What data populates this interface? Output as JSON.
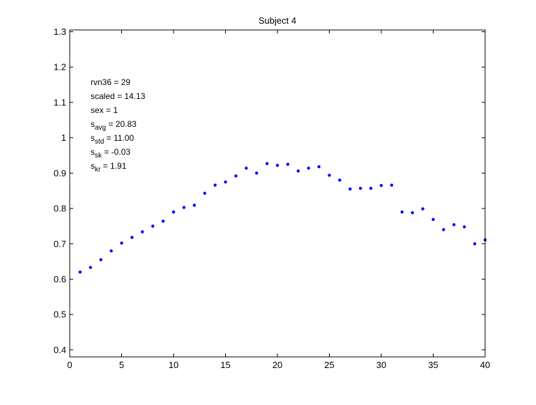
{
  "chart_data": {
    "type": "scatter",
    "title": "Subject 4",
    "xlabel": "",
    "ylabel": "",
    "xlim": [
      0,
      40
    ],
    "ylim": [
      0.38,
      1.305
    ],
    "x_ticks": [
      0,
      5,
      10,
      15,
      20,
      25,
      30,
      35,
      40
    ],
    "y_ticks": [
      0.4,
      0.5,
      0.6,
      0.7,
      0.8,
      0.9,
      1,
      1.1,
      1.2,
      1.3
    ],
    "x_tick_labels": [
      "0",
      "5",
      "10",
      "15",
      "20",
      "25",
      "30",
      "35",
      "40"
    ],
    "y_tick_labels": [
      "0.4",
      "0.5",
      "0.6",
      "0.7",
      "0.8",
      "0.9",
      "1",
      "1.1",
      "1.2",
      "1.3"
    ],
    "grid": false,
    "legend": null,
    "marker_color": "#0000ff",
    "series": [
      {
        "x": [
          1,
          2,
          3,
          4,
          5,
          6,
          7,
          8,
          9,
          10,
          11,
          12,
          13,
          14,
          15,
          16,
          17,
          18,
          19,
          20,
          21,
          22,
          23,
          24,
          25,
          26,
          27,
          28,
          29,
          30,
          31,
          32,
          33,
          34,
          35,
          36,
          37,
          38,
          39,
          40
        ],
        "y": [
          0.62,
          0.633,
          0.655,
          0.68,
          0.702,
          0.718,
          0.734,
          0.75,
          0.764,
          0.79,
          0.803,
          0.809,
          0.843,
          0.866,
          0.875,
          0.892,
          0.914,
          0.9,
          0.927,
          0.922,
          0.925,
          0.906,
          0.914,
          0.918,
          0.894,
          0.88,
          0.855,
          0.857,
          0.857,
          0.865,
          0.866,
          0.79,
          0.788,
          0.799,
          0.769,
          0.74,
          0.754,
          0.748,
          0.7,
          0.711
        ]
      }
    ],
    "annotations": [
      {
        "base": "rvn36 = 29",
        "sub": "",
        "rest": ""
      },
      {
        "base": "scaled = 14.13",
        "sub": "",
        "rest": ""
      },
      {
        "base": "sex   = 1",
        "sub": "",
        "rest": ""
      },
      {
        "base": "s",
        "sub": "avg",
        "rest": " = 20.83"
      },
      {
        "base": "s",
        "sub": "std",
        "rest": " = 11.00"
      },
      {
        "base": "s",
        "sub": "sk",
        "rest": " = -0.03"
      },
      {
        "base": "s",
        "sub": "kr",
        "rest": " = 1.91"
      }
    ]
  }
}
